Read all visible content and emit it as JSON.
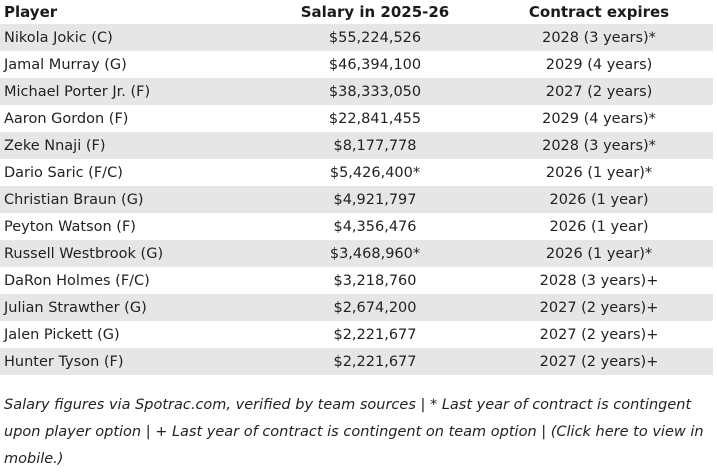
{
  "table": {
    "headers": {
      "player": "Player",
      "salary": "Salary in 2025-26",
      "contract": "Contract expires"
    },
    "rows": [
      {
        "player": "Nikola Jokic (C)",
        "salary": "$55,224,526",
        "contract": "2028 (3 years)*"
      },
      {
        "player": "Jamal Murray (G)",
        "salary": "$46,394,100",
        "contract": "2029 (4 years)"
      },
      {
        "player": "Michael Porter Jr. (F)",
        "salary": "$38,333,050",
        "contract": "2027 (2 years)"
      },
      {
        "player": "Aaron Gordon (F)",
        "salary": "$22,841,455",
        "contract": "2029 (4 years)*"
      },
      {
        "player": "Zeke Nnaji (F)",
        "salary": "$8,177,778",
        "contract": "2028 (3 years)*"
      },
      {
        "player": "Dario Saric (F/C)",
        "salary": "$5,426,400*",
        "contract": "2026 (1 year)*"
      },
      {
        "player": "Christian Braun (G)",
        "salary": "$4,921,797",
        "contract": "2026 (1 year)"
      },
      {
        "player": "Peyton Watson (F)",
        "salary": "$4,356,476",
        "contract": "2026 (1 year)"
      },
      {
        "player": "Russell Westbrook (G)",
        "salary": "$3,468,960*",
        "contract": "2026 (1 year)*"
      },
      {
        "player": "DaRon Holmes (F/C)",
        "salary": "$3,218,760",
        "contract": "2028 (3 years)+"
      },
      {
        "player": "Julian Strawther (G)",
        "salary": "$2,674,200",
        "contract": "2027 (2 years)+"
      },
      {
        "player": "Jalen Pickett (G)",
        "salary": "$2,221,677",
        "contract": "2027 (2 years)+"
      },
      {
        "player": "Hunter Tyson (F)",
        "salary": "$2,221,677",
        "contract": "2027 (2 years)+"
      }
    ]
  },
  "footnote": "Salary figures via Spotrac.com, verified by team sources | * Last year of contract is contingent upon player option | + Last year of contract is contingent on team option | (Click here to view in mobile.)"
}
